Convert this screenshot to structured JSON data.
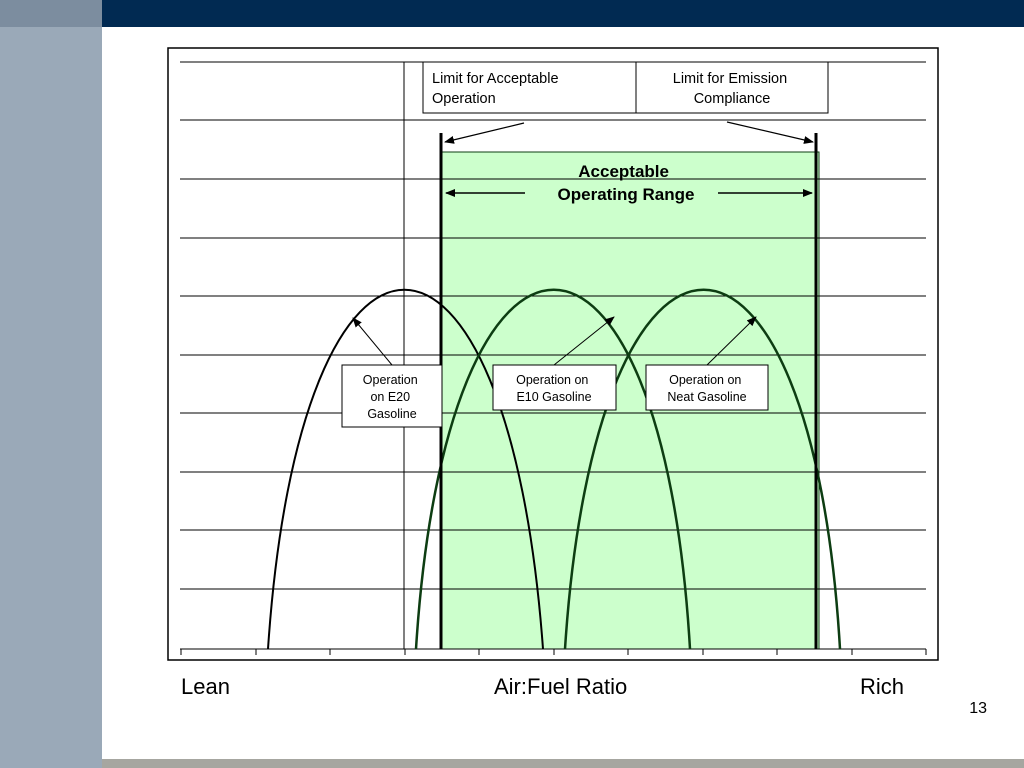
{
  "slide": {
    "number": "13",
    "colors": {
      "top_bar": "#012a52",
      "sidebar": "#9aa9b8",
      "bottom_bar": "#a6a6a0",
      "range_fill": "#ccffcc",
      "curve_dark": "#0d3d12"
    }
  },
  "diagram": {
    "limit_acceptable": [
      "Limit for Acceptable",
      "Operation"
    ],
    "limit_emission": [
      "Limit for Emission",
      "Compliance"
    ],
    "range_label": [
      "Acceptable",
      "Operating Range"
    ],
    "e20_label": [
      "Operation",
      "on E20",
      "Gasoline"
    ],
    "e10_label": [
      "Operation on",
      "E10 Gasoline"
    ],
    "neat_label": [
      "Operation on",
      "Neat Gasoline"
    ]
  },
  "axis": {
    "left": "Lean",
    "center": "Air:Fuel Ratio",
    "right": "Rich"
  }
}
